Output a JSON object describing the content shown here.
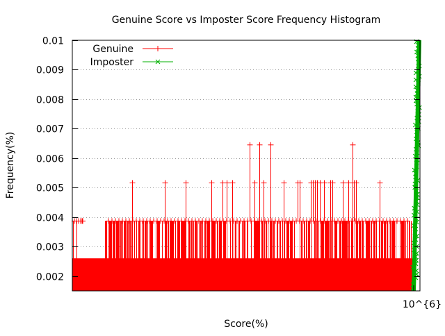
{
  "chart_data": {
    "type": "line",
    "title": "Genuine Score vs Imposter Score Frequency Histogram",
    "xlabel": "Score(%)",
    "ylabel": "Frequency(%)",
    "x_tick_labels": [
      "10^{6}"
    ],
    "y_ticks": [
      0.002,
      0.003,
      0.004,
      0.005,
      0.006,
      0.007,
      0.008,
      0.009,
      0.01
    ],
    "y_tick_labels": [
      "0.002",
      "0.003",
      "0.004",
      "0.005",
      "0.006",
      "0.007",
      "0.008",
      "0.009",
      "0.01"
    ],
    "ylim": [
      0.0015,
      0.01
    ],
    "grid": "horizontal dotted",
    "legend_position": "top-left",
    "series": [
      {
        "name": "Genuine",
        "color": "#ff0000",
        "marker": "+",
        "baseline_value": 0.0026,
        "common_value": 0.00387,
        "peak_value": 0.00516,
        "max_value": 0.00645
      },
      {
        "name": "Imposter",
        "color": "#00b000",
        "marker": "x",
        "min_value": 0.0015,
        "max_value": 0.01
      }
    ]
  }
}
